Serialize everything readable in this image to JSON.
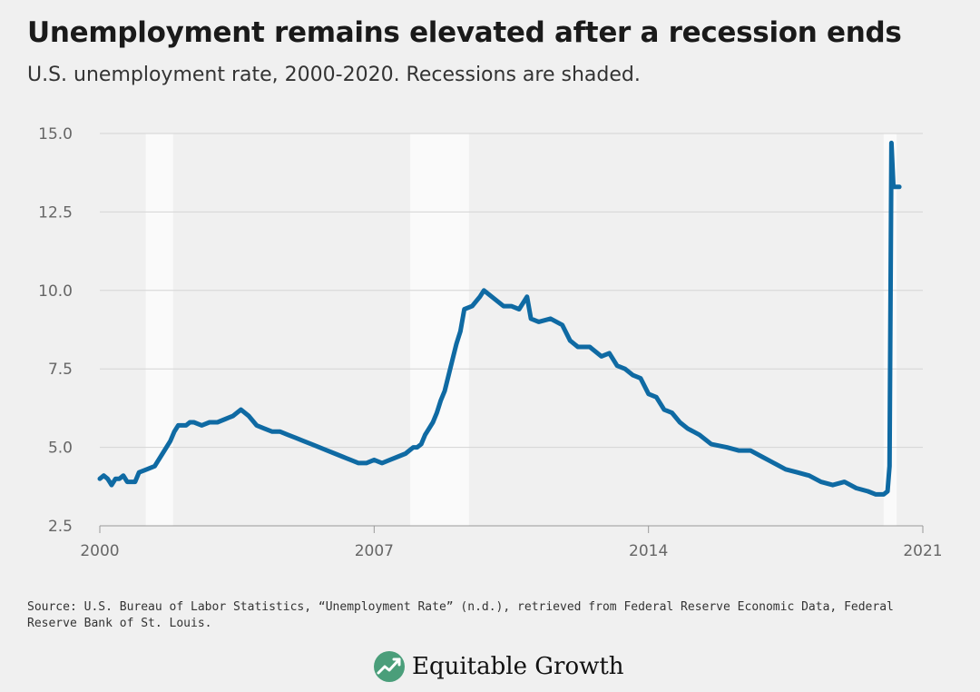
{
  "chart_data": {
    "type": "line",
    "title": "Unemployment remains elevated after a recession ends",
    "subtitle": "U.S. unemployment rate, 2000-2020. Recessions are shaded.",
    "ylim": [
      2.5,
      15.0
    ],
    "yticks": [
      "15.0",
      "12.5",
      "10.0",
      "7.5",
      "5.0",
      "2.5"
    ],
    "ytick_values": [
      15.0,
      12.5,
      10.0,
      7.5,
      5.0,
      2.5
    ],
    "xlim": [
      2000,
      2021
    ],
    "xticks": [
      "2000",
      "2007",
      "2014",
      "2021"
    ],
    "xtick_values": [
      2000,
      2007,
      2014,
      2021
    ],
    "grid": "horizontal",
    "line_color": "#0f6aa3",
    "recessions": [
      {
        "start": 2001.17,
        "end": 2001.87
      },
      {
        "start": 2007.92,
        "end": 2009.42
      },
      {
        "start": 2020.0,
        "end": 2020.33
      }
    ],
    "series": [
      {
        "x": [
          2000.0,
          2000.1,
          2000.2,
          2000.3,
          2000.4,
          2000.5,
          2000.6,
          2000.7,
          2000.8,
          2000.9,
          2001.0,
          2001.2,
          2001.4,
          2001.6,
          2001.8,
          2001.9,
          2002.0,
          2002.1,
          2002.2,
          2002.3,
          2002.4,
          2002.6,
          2002.8,
          2003.0,
          2003.2,
          2003.4,
          2003.6,
          2003.8,
          2004.0,
          2004.2,
          2004.4,
          2004.6,
          2004.8,
          2005.0,
          2005.2,
          2005.4,
          2005.6,
          2005.8,
          2006.0,
          2006.2,
          2006.4,
          2006.6,
          2006.8,
          2007.0,
          2007.2,
          2007.4,
          2007.6,
          2007.8,
          2008.0,
          2008.1,
          2008.2,
          2008.3,
          2008.4,
          2008.5,
          2008.6,
          2008.7,
          2008.8,
          2008.9,
          2009.0,
          2009.1,
          2009.2,
          2009.3,
          2009.5,
          2009.7,
          2009.8,
          2010.0,
          2010.3,
          2010.5,
          2010.7,
          2010.9,
          2011.0,
          2011.2,
          2011.5,
          2011.8,
          2012.0,
          2012.2,
          2012.5,
          2012.8,
          2013.0,
          2013.2,
          2013.4,
          2013.6,
          2013.8,
          2014.0,
          2014.2,
          2014.4,
          2014.6,
          2014.8,
          2015.0,
          2015.3,
          2015.6,
          2016.0,
          2016.3,
          2016.6,
          2016.9,
          2017.2,
          2017.5,
          2017.8,
          2018.1,
          2018.4,
          2018.7,
          2019.0,
          2019.3,
          2019.6,
          2019.8,
          2020.0,
          2020.1,
          2020.15,
          2020.2,
          2020.25,
          2020.3,
          2020.4
        ],
        "y": [
          4.0,
          4.1,
          4.0,
          3.8,
          4.0,
          4.0,
          4.1,
          3.9,
          3.9,
          3.9,
          4.2,
          4.3,
          4.4,
          4.8,
          5.2,
          5.5,
          5.7,
          5.7,
          5.7,
          5.8,
          5.8,
          5.7,
          5.8,
          5.8,
          5.9,
          6.0,
          6.2,
          6.0,
          5.7,
          5.6,
          5.5,
          5.5,
          5.4,
          5.3,
          5.2,
          5.1,
          5.0,
          4.9,
          4.8,
          4.7,
          4.6,
          4.5,
          4.5,
          4.6,
          4.5,
          4.6,
          4.7,
          4.8,
          5.0,
          5.0,
          5.1,
          5.4,
          5.6,
          5.8,
          6.1,
          6.5,
          6.8,
          7.3,
          7.8,
          8.3,
          8.7,
          9.4,
          9.5,
          9.8,
          10.0,
          9.8,
          9.5,
          9.5,
          9.4,
          9.8,
          9.1,
          9.0,
          9.1,
          8.9,
          8.4,
          8.2,
          8.2,
          7.9,
          8.0,
          7.6,
          7.5,
          7.3,
          7.2,
          6.7,
          6.6,
          6.2,
          6.1,
          5.8,
          5.6,
          5.4,
          5.1,
          5.0,
          4.9,
          4.9,
          4.7,
          4.5,
          4.3,
          4.2,
          4.1,
          3.9,
          3.8,
          3.9,
          3.7,
          3.6,
          3.5,
          3.5,
          3.6,
          4.4,
          14.7,
          13.3,
          13.3,
          13.3
        ]
      }
    ]
  },
  "source": "Source: U.S. Bureau of Labor Statistics, “Unemployment Rate” (n.d.), retrieved from Federal Reserve Economic Data, Federal Reserve Bank of St. Louis.",
  "logo": {
    "text": "Equitable Growth",
    "color": "#4a9e7a",
    "icon": "growth-leaf-icon"
  }
}
